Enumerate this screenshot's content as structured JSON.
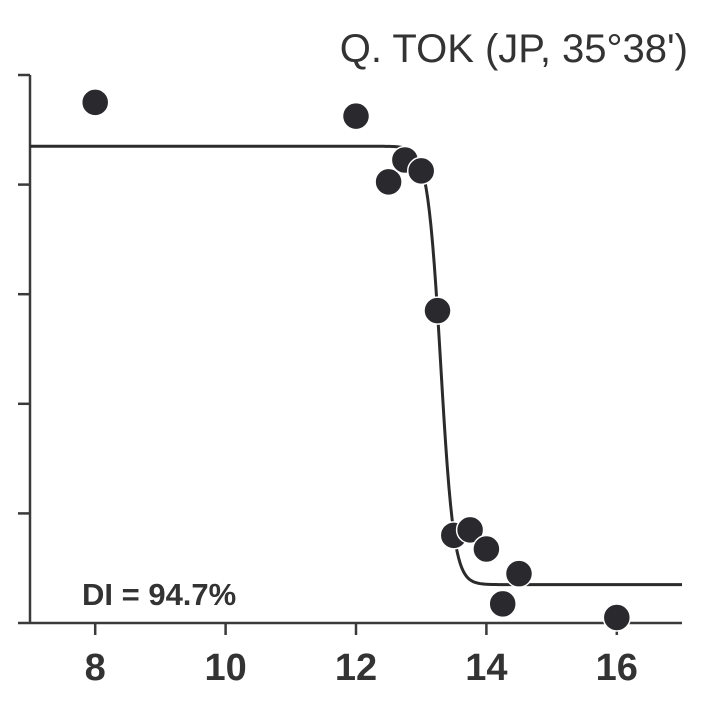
{
  "chart_data": {
    "type": "scatter",
    "title": "Q. TOK (JP, 35°38')",
    "annotation": "DI = 94.7%",
    "xlabel": "",
    "ylabel": "",
    "xlim": [
      7,
      17
    ],
    "ylim": [
      0,
      1
    ],
    "x_ticks": [
      8,
      10,
      12,
      14,
      16
    ],
    "x_tick_labels": [
      "8",
      "10",
      "12",
      "14",
      "16"
    ],
    "y_ticks": [
      0,
      0.2,
      0.4,
      0.6,
      0.8,
      1.0
    ],
    "grid": false,
    "legend": "none",
    "points": [
      {
        "x": 8.0,
        "y": 0.95
      },
      {
        "x": 12.0,
        "y": 0.925
      },
      {
        "x": 12.5,
        "y": 0.805
      },
      {
        "x": 12.75,
        "y": 0.845
      },
      {
        "x": 13.0,
        "y": 0.825
      },
      {
        "x": 13.25,
        "y": 0.57
      },
      {
        "x": 13.5,
        "y": 0.16
      },
      {
        "x": 13.75,
        "y": 0.17
      },
      {
        "x": 14.0,
        "y": 0.135
      },
      {
        "x": 14.25,
        "y": 0.035
      },
      {
        "x": 14.5,
        "y": 0.09
      },
      {
        "x": 16.0,
        "y": 0.01
      }
    ],
    "fit_curve": {
      "type": "logistic",
      "upper": 0.87,
      "lower": 0.07,
      "midpoint": 13.3,
      "slope": 0.1
    },
    "colors": {
      "points": "#2a2a2e",
      "curve": "#2b2b2b",
      "axis": "#3a3a3a",
      "text": "#333333"
    }
  }
}
